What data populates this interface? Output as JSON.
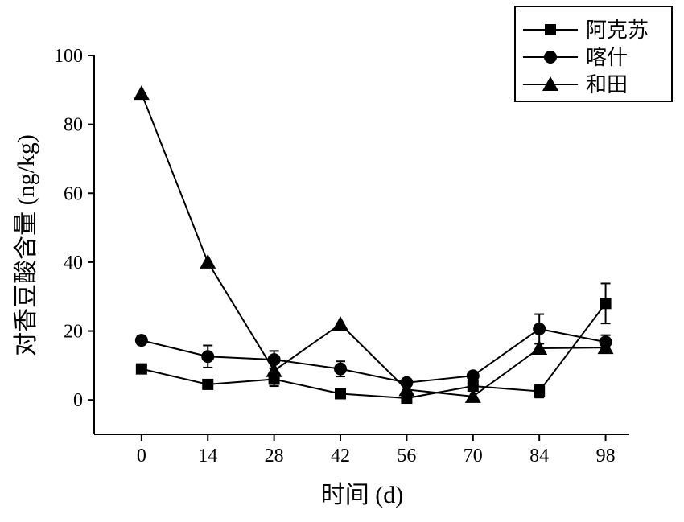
{
  "chart_data": {
    "type": "line",
    "title": "",
    "xlabel": "时间 (d)",
    "ylabel": "对香豆酸含量 (ng/kg)",
    "x": [
      0,
      14,
      28,
      42,
      56,
      70,
      84,
      98
    ],
    "xticks": [
      "0",
      "14",
      "28",
      "42",
      "56",
      "70",
      "84",
      "98"
    ],
    "yticks": [
      "0",
      "20",
      "40",
      "60",
      "80",
      "100"
    ],
    "xlim": [
      -10,
      103
    ],
    "ylim": [
      -10,
      100
    ],
    "grid": false,
    "legend_position": "top-right",
    "series": [
      {
        "name": "阿克苏",
        "marker": "square",
        "values": [
          9,
          4.5,
          6,
          1.8,
          0.5,
          4,
          2.5,
          28
        ],
        "errors": [
          0.8,
          0.8,
          2,
          0.5,
          0.6,
          1,
          1.8,
          5.8
        ]
      },
      {
        "name": "喀什",
        "marker": "circle",
        "values": [
          17.3,
          12.6,
          11.7,
          9,
          5,
          7,
          20.6,
          16.8
        ],
        "errors": [
          1.2,
          3.2,
          2.5,
          2.2,
          0.8,
          1,
          4.3,
          2
        ]
      },
      {
        "name": "和田",
        "marker": "triangle",
        "values": [
          89,
          40,
          8.5,
          22,
          3,
          1,
          15,
          15.2
        ],
        "errors": [
          0,
          0,
          0,
          0,
          0,
          0,
          0,
          0
        ]
      }
    ]
  }
}
